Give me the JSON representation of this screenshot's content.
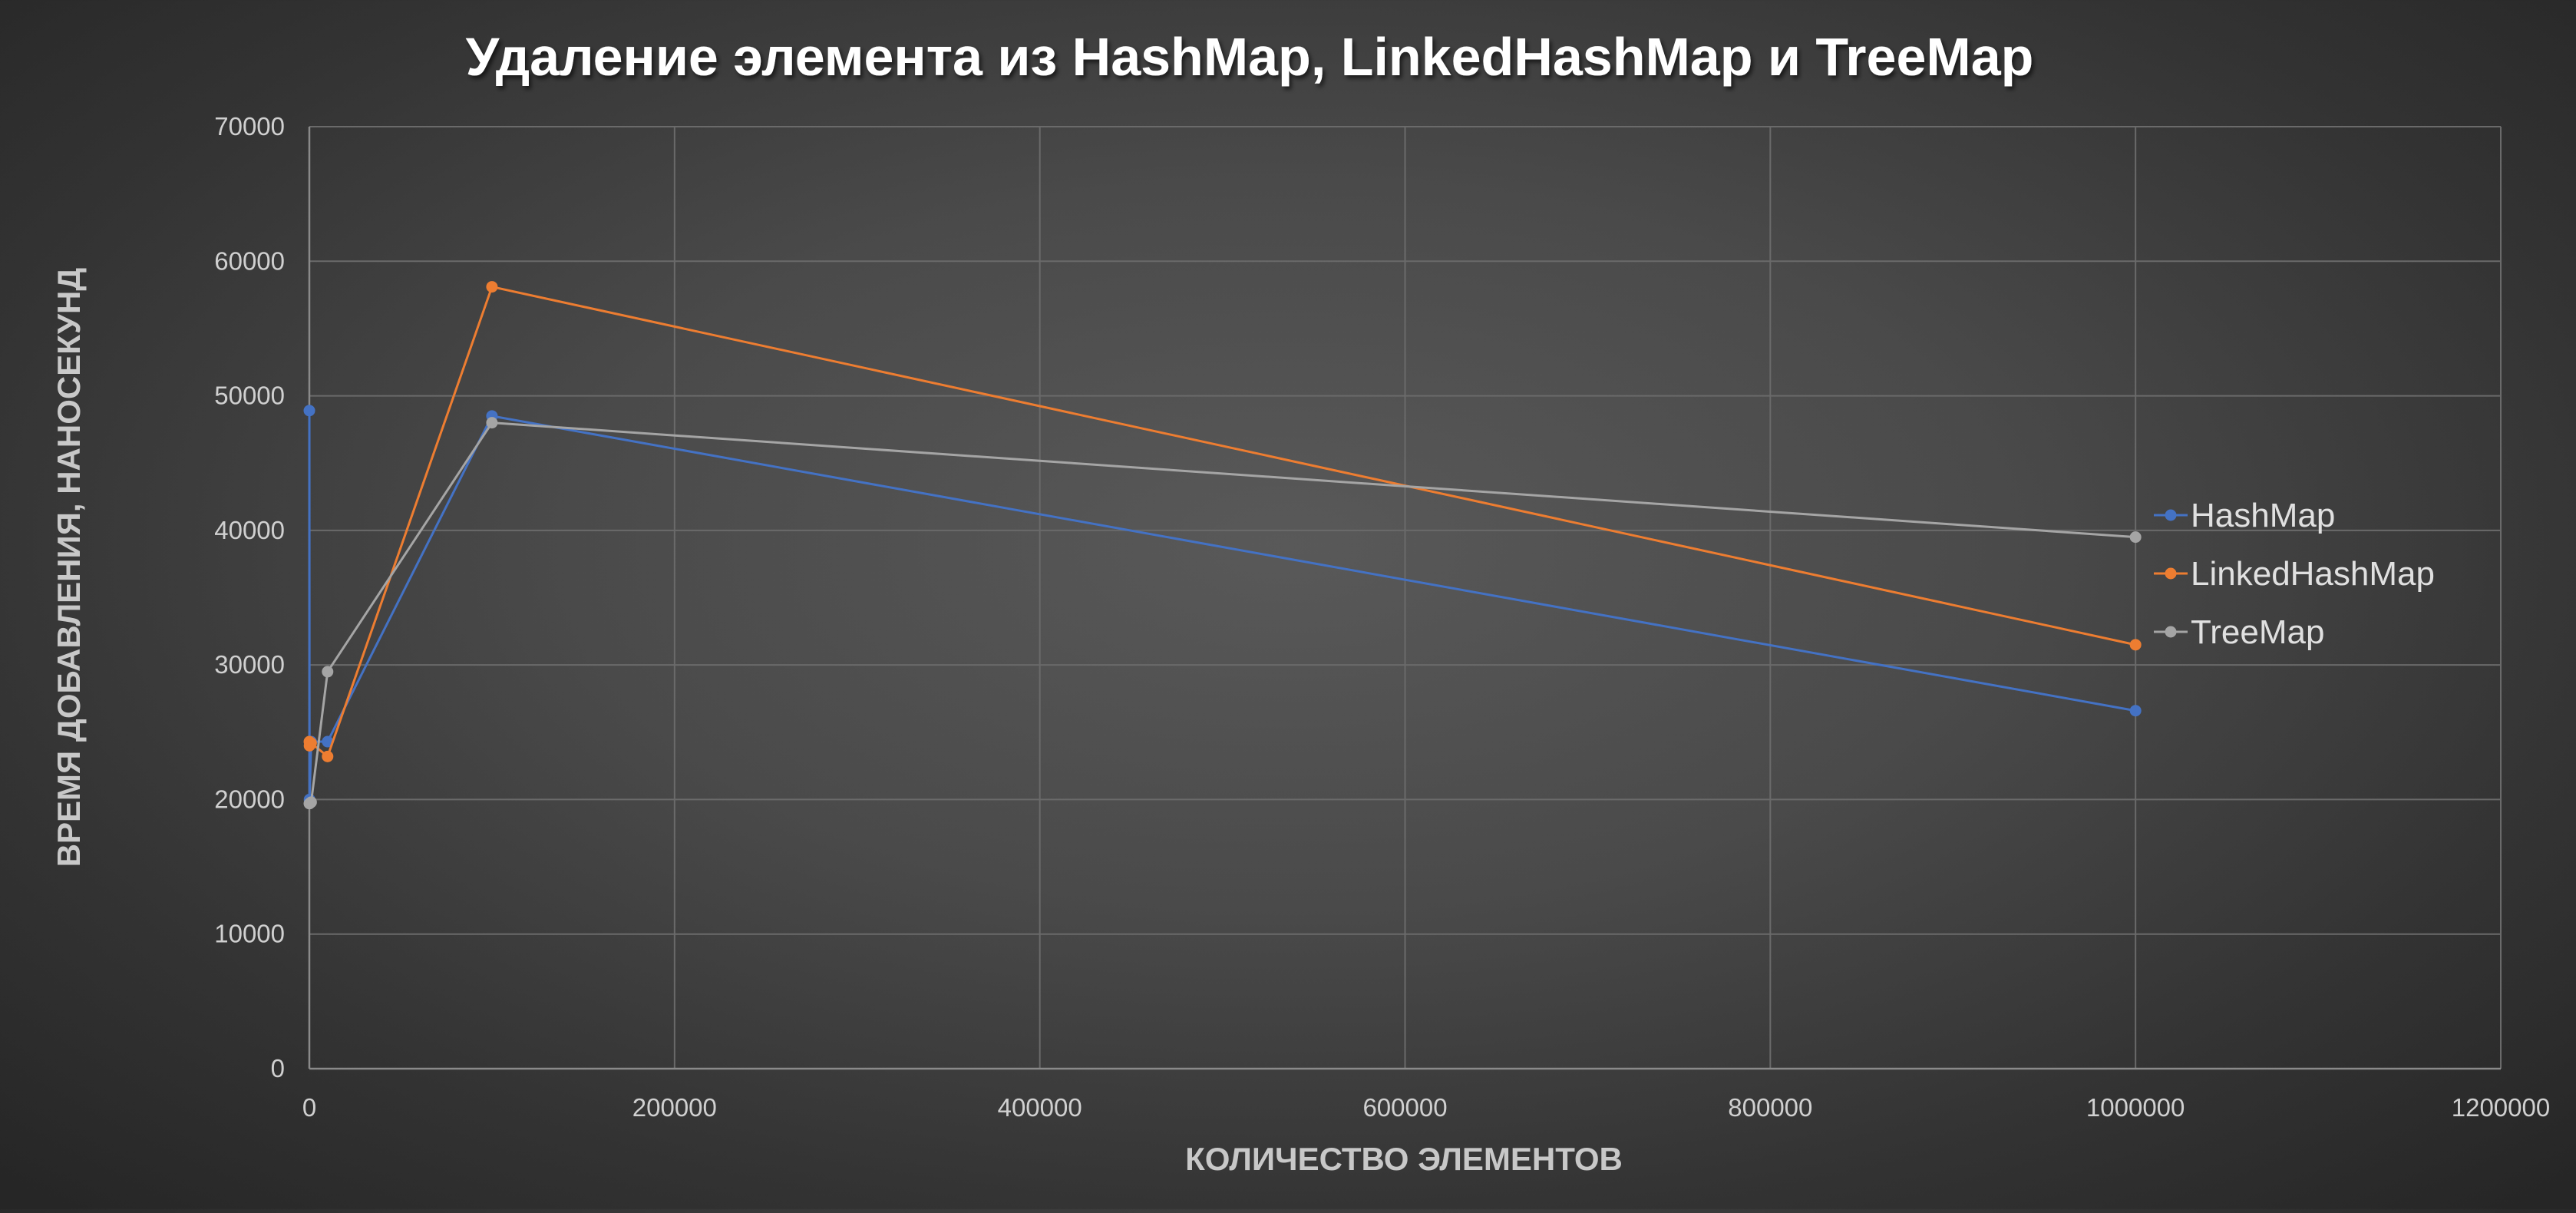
{
  "chart_data": {
    "type": "scatter",
    "title": "Удаление элемента из HashMap, LinkedHashMap и TreeMap",
    "xlabel": "КОЛИЧЕСТВО ЭЛЕМЕНТОВ",
    "ylabel": "ВРЕМЯ ДОБАВЛЕНИЯ, НАНОСЕКУНД",
    "xlim": [
      0,
      1200000
    ],
    "ylim": [
      0,
      70000
    ],
    "x_ticks": [
      0,
      200000,
      400000,
      600000,
      800000,
      1000000,
      1200000
    ],
    "y_ticks": [
      0,
      10000,
      20000,
      30000,
      40000,
      50000,
      60000,
      70000
    ],
    "grid": true,
    "legend_position": "right",
    "series": [
      {
        "name": "HashMap",
        "color": "#4472C4",
        "x": [
          10,
          100,
          1000,
          10000,
          100000,
          1000000
        ],
        "y": [
          48900,
          20000,
          24300,
          24300,
          48500,
          26600
        ]
      },
      {
        "name": "LinkedHashMap",
        "color": "#ED7D31",
        "x": [
          10,
          100,
          1000,
          10000,
          100000,
          1000000
        ],
        "y": [
          24300,
          24000,
          24200,
          23200,
          58100,
          31500
        ]
      },
      {
        "name": "TreeMap",
        "color": "#A5A5A5",
        "x": [
          10,
          100,
          1000,
          10000,
          100000,
          1000000
        ],
        "y": [
          19700,
          19700,
          19800,
          29500,
          48000,
          39500
        ]
      }
    ]
  }
}
